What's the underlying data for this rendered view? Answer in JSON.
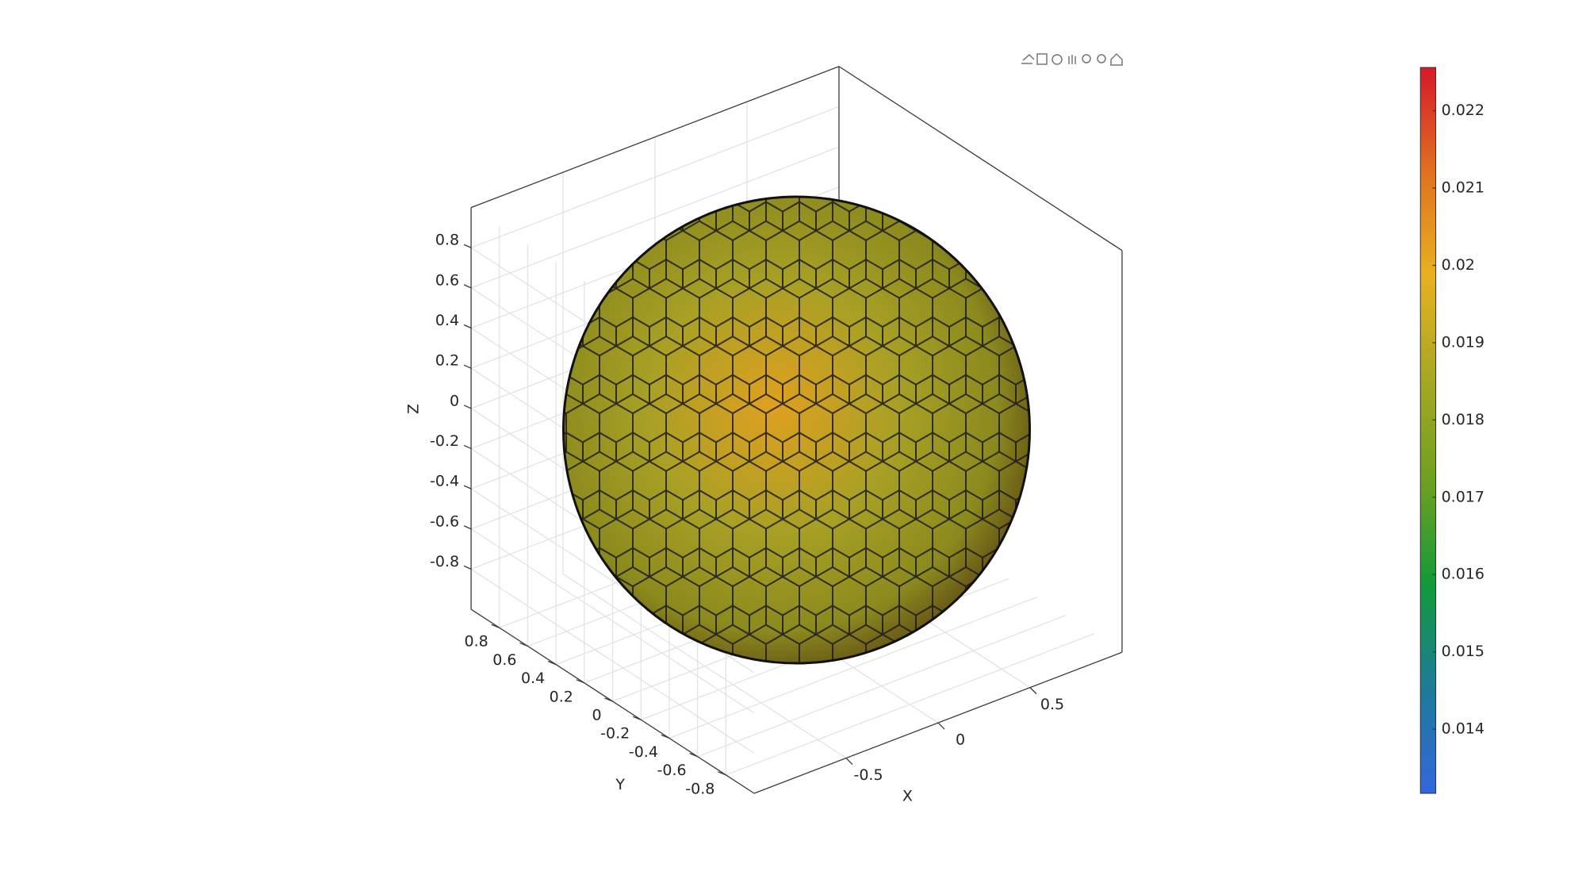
{
  "chart_data": {
    "type": "sphere3d",
    "xlabel": "X",
    "ylabel": "Y",
    "zlabel": "Z",
    "xlim": [
      -1,
      1
    ],
    "ylim": [
      -1,
      1
    ],
    "zlim": [
      -1,
      1
    ],
    "xticks": [
      -0.5,
      0,
      0.5
    ],
    "yticks": [
      -0.8,
      -0.6,
      -0.4,
      -0.2,
      0,
      0.2,
      0.4,
      0.6,
      0.8
    ],
    "zticks": [
      -0.8,
      -0.6,
      -0.4,
      -0.2,
      0,
      0.2,
      0.4,
      0.6,
      0.8
    ],
    "grid": true,
    "colorbar": {
      "clim": [
        0.01317,
        0.02256
      ],
      "ticks": [
        0.014,
        0.015,
        0.016,
        0.017,
        0.018,
        0.019,
        0.02,
        0.021,
        0.022
      ],
      "colormap": [
        "#3366dd",
        "#1f7a9a",
        "#119a3a",
        "#6ea020",
        "#a8a823",
        "#e8b020",
        "#e07020",
        "#d8182a"
      ]
    }
  }
}
